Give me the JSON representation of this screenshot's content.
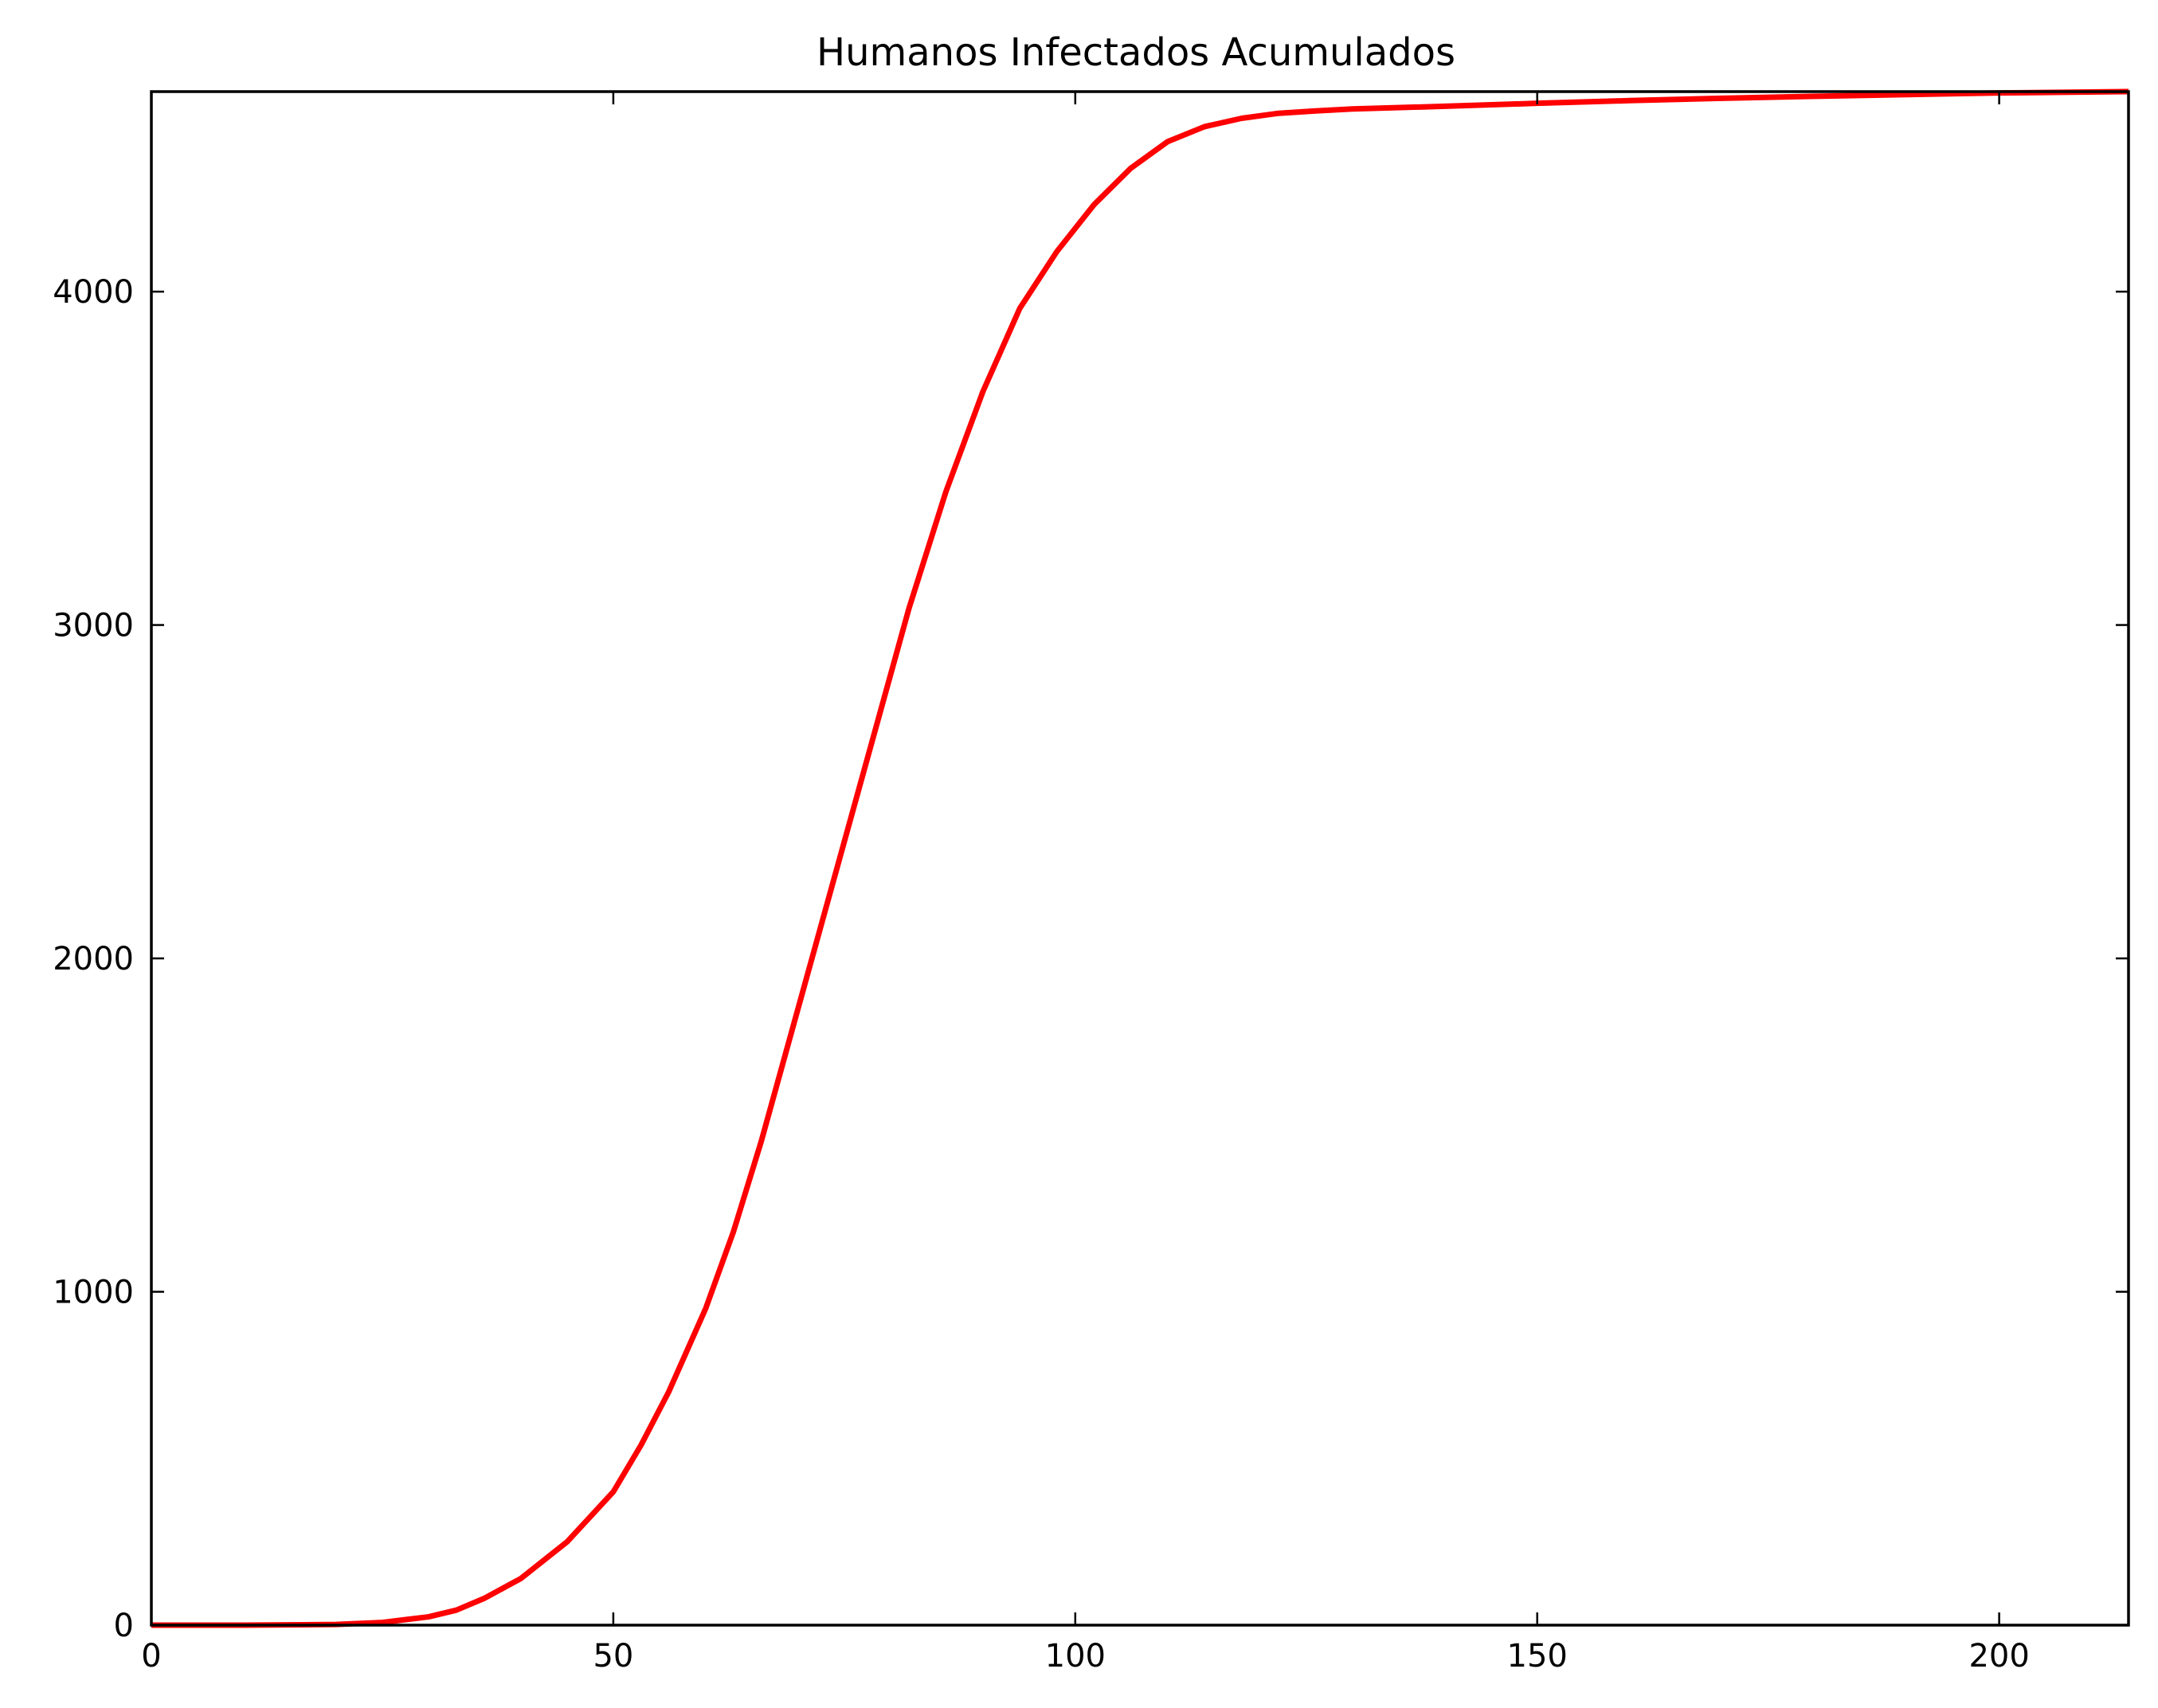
{
  "chart_data": {
    "type": "line",
    "title": "Humanos Infectados Acumulados",
    "xlabel": "",
    "ylabel": "",
    "xlim": [
      0,
      214
    ],
    "ylim": [
      0,
      4600
    ],
    "x_ticks": [
      0,
      50,
      100,
      150,
      200
    ],
    "y_ticks": [
      0,
      1000,
      2000,
      3000,
      4000
    ],
    "grid": false,
    "legend": "none",
    "colors": {
      "line": "#ff0000",
      "axes": "#000000",
      "background": "#ffffff"
    },
    "series": [
      {
        "x": [
          0,
          10,
          20,
          25,
          30,
          33,
          36,
          40,
          45,
          50,
          53,
          56,
          60,
          63,
          66,
          70,
          74,
          78,
          82,
          86,
          90,
          94,
          98,
          102,
          106,
          110,
          114,
          118,
          122,
          126,
          130,
          140,
          150,
          160,
          170,
          180,
          190,
          200,
          214
        ],
        "y": [
          0,
          0,
          2,
          8,
          25,
          45,
          80,
          140,
          250,
          400,
          540,
          700,
          950,
          1180,
          1450,
          1850,
          2250,
          2650,
          3050,
          3400,
          3700,
          3950,
          4120,
          4260,
          4370,
          4450,
          4495,
          4520,
          4535,
          4542,
          4548,
          4556,
          4565,
          4573,
          4580,
          4586,
          4591,
          4596,
          4600
        ]
      }
    ]
  }
}
